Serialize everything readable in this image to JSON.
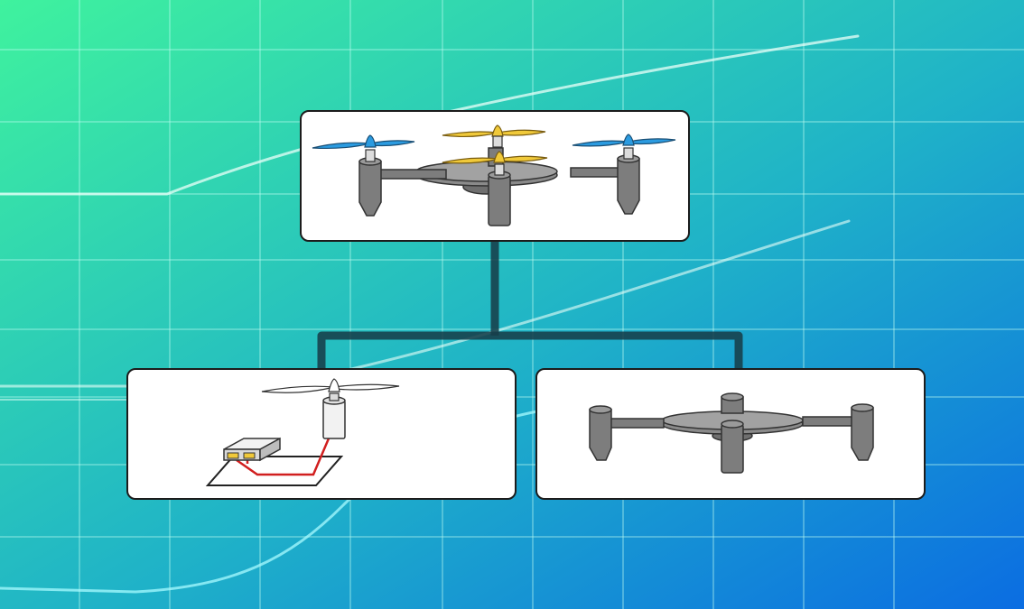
{
  "diagram": {
    "root": {
      "icon": "assembled-quadcopter-drone"
    },
    "children": [
      {
        "icon": "motor-propeller-battery-wiring"
      },
      {
        "icon": "drone-frame-without-propellers"
      }
    ]
  },
  "colors": {
    "background_start": "#3ff29e",
    "background_end": "#0b6de2",
    "grid": "#7ff0e0",
    "connector": "#173f4a",
    "propeller_blue": "#2b9be0",
    "propeller_yellow": "#f0c93a",
    "frame_gray": "#7d7d7d",
    "wire_red": "#d11f1f"
  }
}
